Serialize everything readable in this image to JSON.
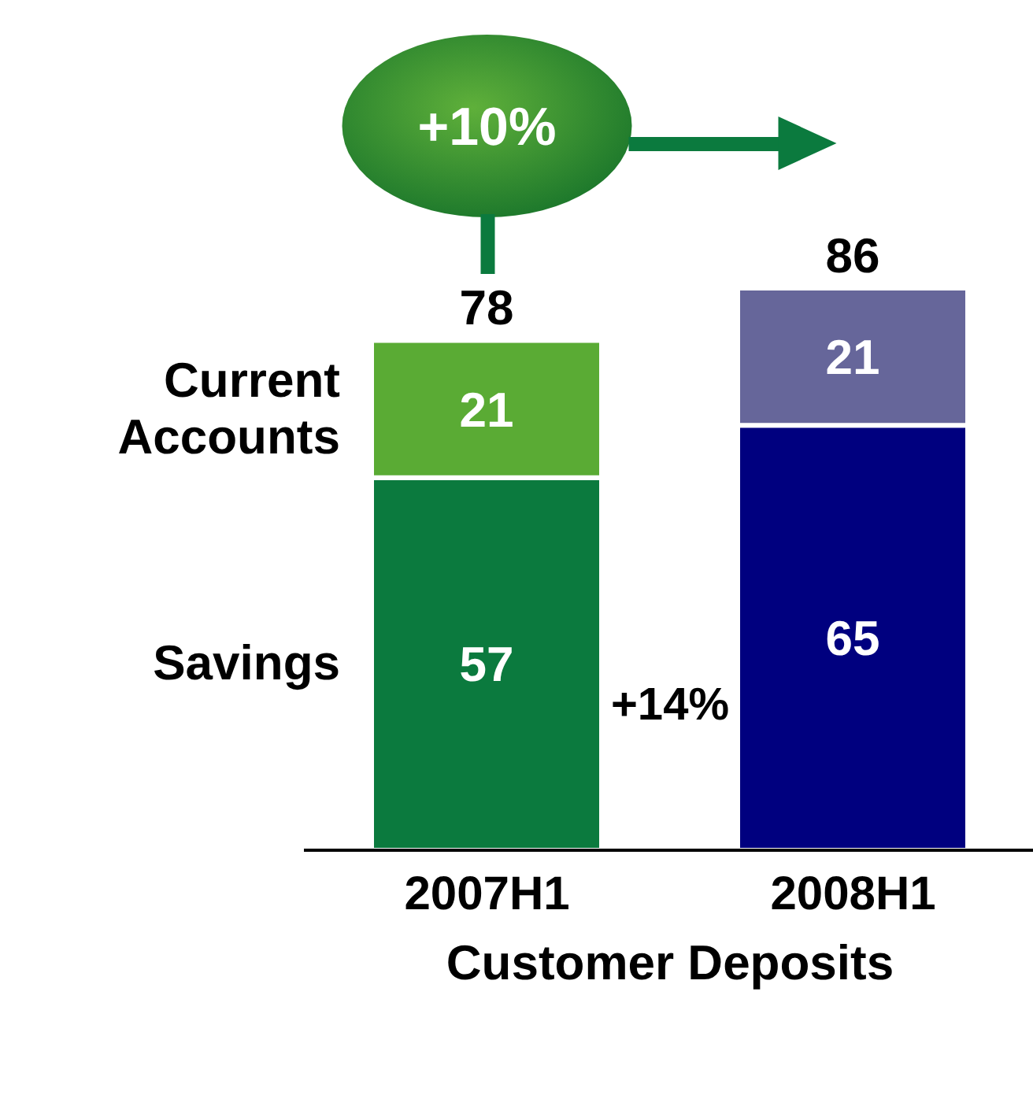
{
  "chart_data": {
    "type": "bar",
    "stacked": true,
    "xlabel": "Customer Deposits",
    "categories": [
      "2007H1",
      "2008H1"
    ],
    "series": [
      {
        "name": "Savings",
        "colors": [
          "#0b7a3e",
          "#00007f"
        ],
        "values": [
          57,
          65
        ]
      },
      {
        "name": "Current Accounts",
        "colors": [
          "#5aab34",
          "#66669a"
        ],
        "values": [
          21,
          21
        ]
      }
    ],
    "data_labels": true,
    "totals": [
      "78",
      "86"
    ],
    "annotations": [
      "+10%",
      "+14%"
    ],
    "legend": false,
    "grid": false
  }
}
